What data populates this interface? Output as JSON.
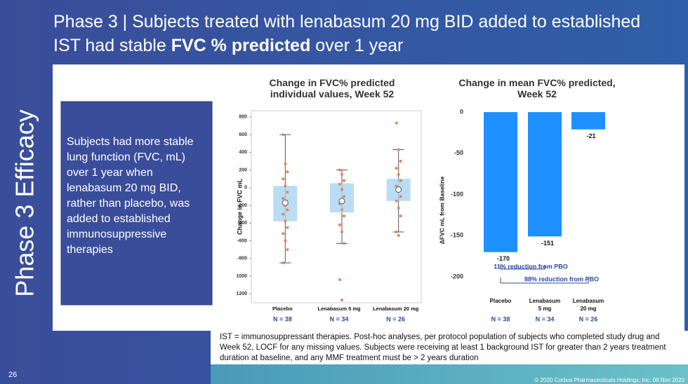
{
  "slide": {
    "section": "Phase 3 Efficacy",
    "title_parts": [
      "Phase 3  | Subjects treated with lenabasum 20 mg BID added to established IST had stable ",
      "FVC % predicted",
      " over 1 year"
    ],
    "body": "Subjects had more stable lung function (FVC, mL) over 1 year when lenabasum 20 mg BID, rather than placebo, was added to established immunosuppressive therapies",
    "footnote": "IST = immunosuppressant therapies.  Post-hoc analyses, per protocol population of subjects who completed study drug and Week 52, LOCF for any missing values.  Subjects were receiving at least 1 background IST for greater than 2 years treatment duration at baseline, and any MMF treatment must be > 2 years duration",
    "page_number": "26",
    "copyright": "© 2020 Corbus Pharmaceuticals Holdings, Inc. 09 Nov 2020"
  },
  "chart_data": [
    {
      "type": "box",
      "title": "Change in FVC% predicted individual values, Week 52",
      "y_label": "Change in FVC mL",
      "categories": [
        "Placebo",
        "Lenabasum 5 mg",
        "Lenabasum 20 mg"
      ],
      "n_labels": [
        "N = 38",
        "N = 34",
        "N = 26"
      ],
      "boxes": [
        {
          "low": -850,
          "q1": -380,
          "q3": 20,
          "high": 600,
          "mean": -170,
          "points": [
            600,
            270,
            180,
            100,
            20,
            -50,
            -120,
            -200,
            -250,
            -300,
            -380,
            -450,
            -520,
            -600,
            -700,
            -850
          ]
        },
        {
          "low": -630,
          "q1": -280,
          "q3": 50,
          "high": 200,
          "mean": -151,
          "points": [
            200,
            150,
            80,
            40,
            -20,
            -100,
            -180,
            -250,
            -320,
            -420,
            -500,
            -630,
            -1040,
            -1270
          ]
        },
        {
          "low": -500,
          "q1": -150,
          "q3": 100,
          "high": 430,
          "mean": -21,
          "points": [
            730,
            430,
            300,
            220,
            150,
            80,
            20,
            -40,
            -100,
            -150,
            -230,
            -320,
            -500,
            -540
          ]
        }
      ],
      "box_color": "#a8d4f2",
      "point_color": "#e8825a",
      "ylim": [
        -1300,
        870
      ],
      "yticks": [
        800,
        600,
        400,
        200,
        0,
        -200,
        -400,
        -600,
        -800,
        {
          "value": -1000,
          "label": "1000"
        },
        {
          "value": -1200,
          "label": "1200"
        }
      ]
    },
    {
      "type": "bar",
      "title": "Change in mean FVC% predicted, Week 52",
      "y_label": "ΔFVC mL from Baseline",
      "categories": [
        "Placebo",
        "Lenabasum 5 mg",
        "Lenabasum 20 mg"
      ],
      "n_labels": [
        "N = 38",
        "N = 34",
        "N = 26"
      ],
      "values": [
        -170,
        -151,
        -21
      ],
      "color": "#1e90ff",
      "ylim": [
        -200,
        0
      ],
      "yticks": [
        0,
        -50,
        -100,
        -150,
        -200
      ],
      "annotations": [
        "11% reduction from PBO",
        "88% reduction from PBO"
      ]
    }
  ]
}
